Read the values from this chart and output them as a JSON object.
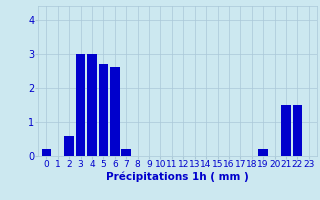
{
  "hours": [
    0,
    1,
    2,
    3,
    4,
    5,
    6,
    7,
    8,
    9,
    10,
    11,
    12,
    13,
    14,
    15,
    16,
    17,
    18,
    19,
    20,
    21,
    22,
    23
  ],
  "values": [
    0.2,
    0.0,
    0.6,
    3.0,
    3.0,
    2.7,
    2.6,
    0.2,
    0.0,
    0.0,
    0.0,
    0.0,
    0.0,
    0.0,
    0.0,
    0.0,
    0.0,
    0.0,
    0.0,
    0.2,
    0.0,
    1.5,
    1.5,
    0.0
  ],
  "bar_color": "#0000cc",
  "background_color": "#cce8f0",
  "grid_color": "#aac8d8",
  "text_color": "#0000cc",
  "xlabel": "Précipitations 1h ( mm )",
  "ylim": [
    0,
    4.4
  ],
  "yticks": [
    0,
    1,
    2,
    3,
    4
  ],
  "xlabel_fontsize": 7.5,
  "tick_fontsize": 6.5
}
